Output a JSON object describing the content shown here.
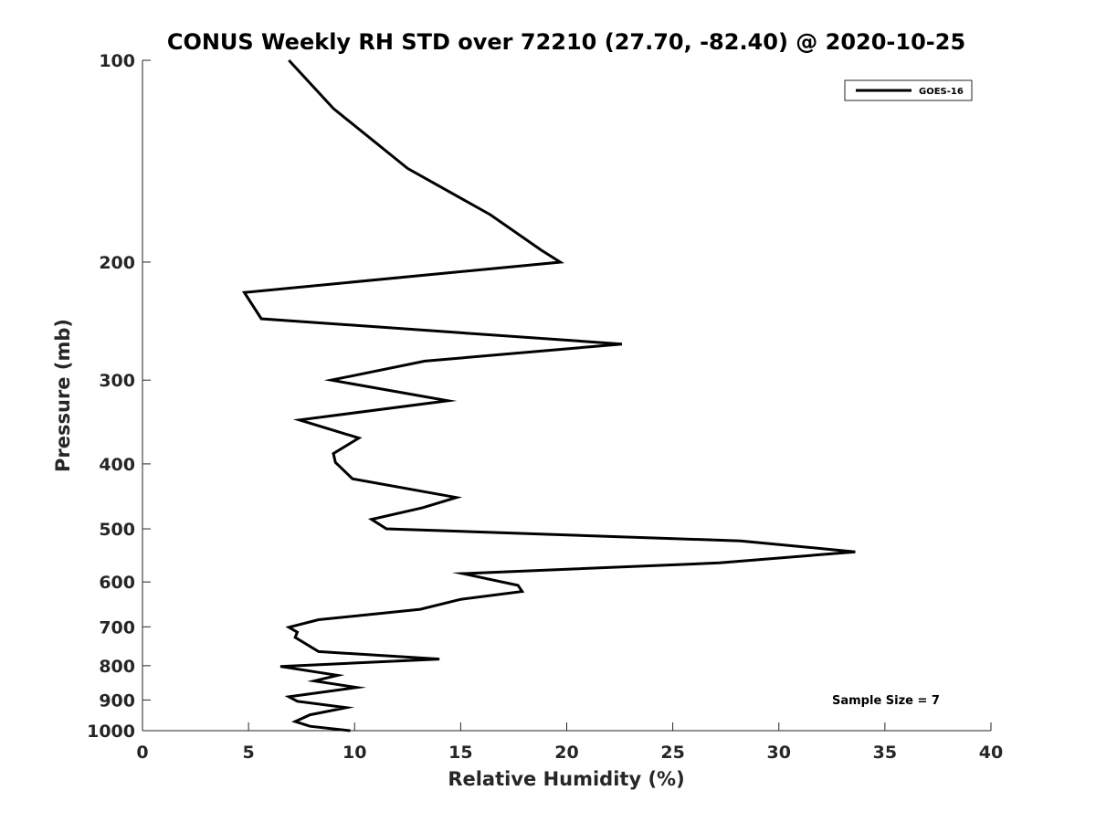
{
  "chart_data": {
    "type": "line",
    "title": "CONUS Weekly RH STD over 72210 (27.70, -82.40) @ 2020-10-25",
    "xlabel": "Relative Humidity (%)",
    "ylabel": "Pressure (mb)",
    "xlim": [
      0,
      40
    ],
    "ylim": [
      100,
      1000
    ],
    "y_scale": "log",
    "y_reversed": true,
    "grid": false,
    "x_ticks": [
      0,
      5,
      10,
      15,
      20,
      25,
      30,
      35,
      40
    ],
    "x_tick_labels": [
      "0",
      "5",
      "10",
      "15",
      "20",
      "25",
      "30",
      "35",
      "40"
    ],
    "y_ticks": [
      100,
      200,
      300,
      400,
      500,
      600,
      700,
      800,
      900,
      1000
    ],
    "y_tick_labels": [
      "100",
      "200",
      "300",
      "400",
      "500",
      "600",
      "700",
      "800",
      "900",
      "1000"
    ],
    "legend": {
      "position": "top-right",
      "entries": [
        "GOES-16"
      ]
    },
    "annotation": "Sample Size = 7",
    "series": [
      {
        "name": "GOES-16",
        "color": "#000000",
        "x": [
          6.9,
          9.0,
          12.5,
          16.4,
          18.8,
          19.7,
          4.8,
          5.6,
          22.6,
          13.3,
          8.9,
          14.4,
          7.4,
          10.2,
          9.0,
          9.1,
          9.9,
          14.8,
          13.2,
          10.8,
          11.5,
          28.2,
          33.6,
          27.2,
          15.1,
          17.7,
          17.9,
          15.0,
          13.1,
          8.3,
          6.9,
          7.3,
          7.2,
          8.3,
          14.0,
          6.5,
          9.2,
          8.1,
          10.1,
          6.9,
          7.3,
          9.6,
          7.9,
          7.2,
          7.9,
          9.8
        ],
        "y": [
          100,
          118,
          145,
          170,
          192,
          200,
          222,
          243,
          265,
          281,
          300,
          322,
          344,
          366,
          386,
          398,
          421,
          449,
          465,
          484,
          500,
          521,
          541,
          562,
          583,
          607,
          620,
          637,
          659,
          683,
          701,
          713,
          726,
          762,
          782,
          802,
          827,
          843,
          862,
          890,
          904,
          924,
          947,
          969,
          985,
          1000
        ]
      }
    ]
  }
}
